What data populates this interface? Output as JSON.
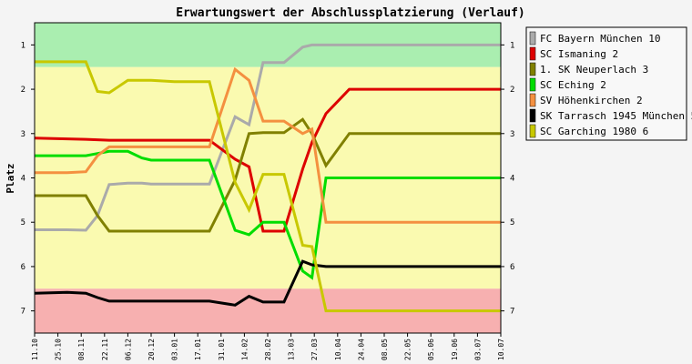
{
  "chart_data": {
    "type": "line",
    "title": "Erwartungswert der Abschlussplatzierung (Verlauf)",
    "ylabel": "Platz",
    "xlabel": "",
    "y_reversed": true,
    "ylim": [
      0.5,
      7.5
    ],
    "y_ticks": [
      "1",
      "2",
      "3",
      "4",
      "5",
      "6",
      "7"
    ],
    "grid": false,
    "legend_position": "right",
    "zones": [
      {
        "from": 0.5,
        "to": 1.5,
        "color": "#aaeeb0"
      },
      {
        "from": 1.5,
        "to": 6.5,
        "color": "#fafab0"
      },
      {
        "from": 6.5,
        "to": 7.5,
        "color": "#f7b0b0"
      }
    ],
    "categories": [
      "11.10",
      "25.10",
      "08.11",
      "22.11",
      "06.12",
      "20.12",
      "03.01",
      "17.01",
      "31.01",
      "14.02",
      "28.02",
      "13.03",
      "27.03",
      "10.04",
      "24.04",
      "08.05",
      "22.05",
      "05.06",
      "19.06",
      "03.07",
      "10.07"
    ],
    "x_positions": [
      0,
      1,
      2,
      3,
      4,
      5,
      6,
      7,
      8,
      9,
      10,
      11,
      12,
      13,
      14,
      15,
      16,
      17,
      18,
      19,
      20
    ],
    "series": [
      {
        "name": "FC Bayern München 10",
        "color": "#aaaaaa",
        "x": [
          0,
          1.4,
          2.2,
          2.7,
          3.2,
          4,
          4.6,
          5,
          6,
          7.5,
          8.6,
          9.2,
          9.8,
          10.7,
          11.5,
          11.9,
          12.5,
          13.5,
          14.5,
          15.5,
          16.5,
          17.5,
          18.5,
          19.5,
          20
        ],
        "y": [
          5.17,
          5.17,
          5.18,
          4.85,
          4.15,
          4.12,
          4.12,
          4.14,
          4.14,
          4.14,
          2.62,
          2.8,
          1.4,
          1.4,
          1.05,
          1.0,
          1.0,
          1.0,
          1.0,
          1.0,
          1.0,
          1.0,
          1.0,
          1.0,
          1.0
        ]
      },
      {
        "name": "SC Ismaning 2",
        "color": "#dd0000",
        "x": [
          0,
          1.4,
          2.2,
          2.7,
          3.2,
          4,
          4.6,
          5,
          6,
          7.5,
          8.6,
          9.2,
          9.8,
          10.7,
          11.5,
          11.9,
          12.5,
          13.5,
          14.5,
          15.5,
          16.5,
          17.5,
          18.5,
          19.5,
          20
        ],
        "y": [
          3.1,
          3.12,
          3.13,
          3.14,
          3.15,
          3.15,
          3.15,
          3.15,
          3.15,
          3.15,
          3.58,
          3.75,
          5.2,
          5.2,
          3.8,
          3.2,
          2.55,
          2.0,
          2.0,
          2.0,
          2.0,
          2.0,
          2.0,
          2.0,
          2.0
        ]
      },
      {
        "name": "1. SK Neuperlach 3",
        "color": "#808000",
        "x": [
          0,
          1.4,
          2.2,
          2.7,
          3.2,
          4,
          4.6,
          5,
          6,
          7.5,
          8.6,
          9.2,
          9.8,
          10.7,
          11.5,
          11.9,
          12.5,
          13.5,
          14.5,
          15.5,
          16.5,
          17.5,
          18.5,
          19.5,
          20
        ],
        "y": [
          4.4,
          4.4,
          4.4,
          4.85,
          5.2,
          5.2,
          5.2,
          5.2,
          5.2,
          5.2,
          4.05,
          3.0,
          2.98,
          2.98,
          2.68,
          3.0,
          3.72,
          3.0,
          3.0,
          3.0,
          3.0,
          3.0,
          3.0,
          3.0,
          3.0
        ]
      },
      {
        "name": "SC Eching 2",
        "color": "#00dd00",
        "x": [
          0,
          1.4,
          2.2,
          2.7,
          3.2,
          4,
          4.6,
          5,
          6,
          7.5,
          8.6,
          9.2,
          9.8,
          10.7,
          11.5,
          11.9,
          12.5,
          13.5,
          14.5,
          15.5,
          16.5,
          17.5,
          18.5,
          19.5,
          20
        ],
        "y": [
          3.5,
          3.5,
          3.5,
          3.45,
          3.4,
          3.4,
          3.55,
          3.6,
          3.6,
          3.6,
          5.18,
          5.28,
          5.0,
          5.0,
          6.1,
          6.25,
          4.0,
          4.0,
          4.0,
          4.0,
          4.0,
          4.0,
          4.0,
          4.0,
          4.0
        ]
      },
      {
        "name": "SV Höhenkirchen 2",
        "color": "#f49040",
        "x": [
          0,
          1.4,
          2.2,
          2.7,
          3.2,
          4,
          4.6,
          5,
          6,
          7.5,
          8.6,
          9.2,
          9.8,
          10.7,
          11.5,
          11.9,
          12.5,
          13.5,
          14.5,
          15.5,
          16.5,
          17.5,
          18.5,
          19.5,
          20
        ],
        "y": [
          3.88,
          3.88,
          3.86,
          3.5,
          3.3,
          3.3,
          3.3,
          3.3,
          3.3,
          3.3,
          1.55,
          1.8,
          2.72,
          2.72,
          3.0,
          2.9,
          5.0,
          5.0,
          5.0,
          5.0,
          5.0,
          5.0,
          5.0,
          5.0,
          5.0
        ]
      },
      {
        "name": "SK Tarrasch 1945 München 5",
        "color": "#000000",
        "x": [
          0,
          1.4,
          2.2,
          2.7,
          3.2,
          4,
          4.6,
          5,
          6,
          7.5,
          8.6,
          9.2,
          9.8,
          10.7,
          11.5,
          11.9,
          12.5,
          13.5,
          14.5,
          15.5,
          16.5,
          17.5,
          18.5,
          19.5,
          20
        ],
        "y": [
          6.6,
          6.58,
          6.6,
          6.7,
          6.78,
          6.78,
          6.78,
          6.78,
          6.78,
          6.78,
          6.87,
          6.67,
          6.8,
          6.8,
          5.88,
          5.96,
          6.0,
          6.0,
          6.0,
          6.0,
          6.0,
          6.0,
          6.0,
          6.0,
          6.0
        ]
      },
      {
        "name": "SC Garching 1980 6",
        "color": "#c8c800",
        "x": [
          0,
          1.4,
          2.2,
          2.7,
          3.2,
          4,
          4.6,
          5,
          6,
          7.5,
          8.6,
          9.2,
          9.8,
          10.7,
          11.5,
          11.9,
          12.5,
          13.5,
          14.5,
          15.5,
          16.5,
          17.5,
          18.5,
          19.5,
          20
        ],
        "y": [
          1.38,
          1.38,
          1.38,
          2.05,
          2.08,
          1.8,
          1.8,
          1.8,
          1.83,
          1.83,
          4.1,
          4.72,
          3.92,
          3.92,
          5.52,
          5.55,
          7.0,
          7.0,
          7.0,
          7.0,
          7.0,
          7.0,
          7.0,
          7.0,
          7.0
        ]
      }
    ]
  }
}
